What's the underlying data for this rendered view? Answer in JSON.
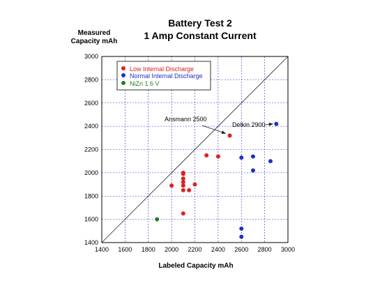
{
  "chart_data": {
    "type": "scatter",
    "title": "Battery Test 2",
    "subtitle": "1 Amp Constant Current",
    "ylabel_line1": "Measured",
    "ylabel_line2": "Capacity  mAh",
    "xlabel": "Labeled Capacity mAh",
    "xlim": [
      1400,
      3000
    ],
    "ylim": [
      1400,
      3000
    ],
    "xticks": [
      1400,
      1600,
      1800,
      2000,
      2200,
      2400,
      2600,
      2800,
      3000
    ],
    "yticks": [
      1400,
      1600,
      1800,
      2000,
      2200,
      2400,
      2600,
      2800,
      3000
    ],
    "grid": true,
    "legend_position": "top-left",
    "reference_line": [
      [
        1400,
        1400
      ],
      [
        3000,
        3000
      ]
    ],
    "series": [
      {
        "name": "Low Internal Discharge",
        "color": "#e02020",
        "points": [
          {
            "x": 2000,
            "y": 1890
          },
          {
            "x": 2100,
            "y": 1650
          },
          {
            "x": 2100,
            "y": 1850
          },
          {
            "x": 2100,
            "y": 1890
          },
          {
            "x": 2100,
            "y": 1920
          },
          {
            "x": 2100,
            "y": 1950
          },
          {
            "x": 2100,
            "y": 1990
          },
          {
            "x": 2100,
            "y": 2000
          },
          {
            "x": 2150,
            "y": 1850
          },
          {
            "x": 2200,
            "y": 1900
          },
          {
            "x": 2300,
            "y": 2150
          },
          {
            "x": 2400,
            "y": 2140
          },
          {
            "x": 2500,
            "y": 2320
          }
        ]
      },
      {
        "name": "Normal Internal Discharge",
        "color": "#2030c0",
        "points": [
          {
            "x": 2600,
            "y": 1450
          },
          {
            "x": 2600,
            "y": 1520
          },
          {
            "x": 2600,
            "y": 2130
          },
          {
            "x": 2700,
            "y": 2020
          },
          {
            "x": 2700,
            "y": 2140
          },
          {
            "x": 2850,
            "y": 2100
          },
          {
            "x": 2900,
            "y": 2420
          }
        ]
      },
      {
        "name": "NiZn 1.6 V",
        "color": "#208020",
        "points": [
          {
            "x": 1875,
            "y": 1600
          }
        ]
      }
    ],
    "annotations": [
      {
        "text": "Ansmann 2500",
        "x": 2500,
        "y": 2320,
        "arrow": true
      },
      {
        "text": "Delkin 2900",
        "x": 2900,
        "y": 2420,
        "arrow": true
      }
    ]
  }
}
